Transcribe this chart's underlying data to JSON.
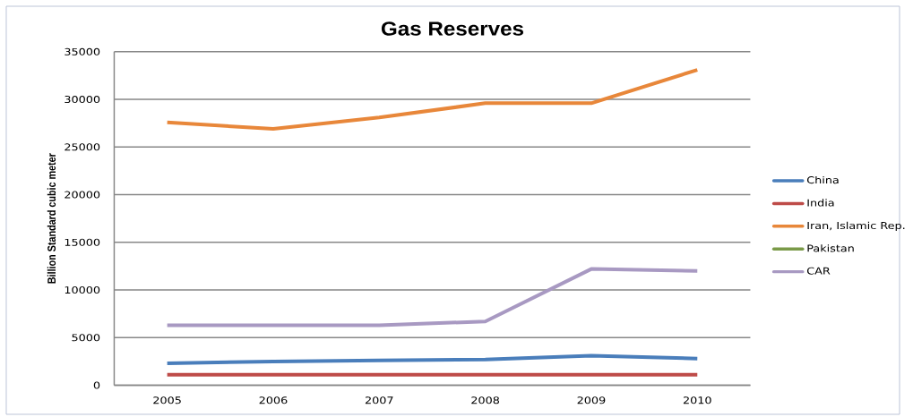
{
  "chart_data": {
    "type": "line",
    "title": "Gas Reserves",
    "ylabel": "Billion Standard cubic meter",
    "categories": [
      "2005",
      "2006",
      "2007",
      "2008",
      "2009",
      "2010"
    ],
    "series": [
      {
        "name": "China",
        "color": "#4a7ebb",
        "values": [
          2300,
          2500,
          2600,
          2700,
          3100,
          2800
        ]
      },
      {
        "name": "India",
        "color": "#be4b48",
        "values": [
          1100,
          1100,
          1100,
          1100,
          1100,
          1100
        ]
      },
      {
        "name": "Iran, Islamic Rep.",
        "color": "#e8873a",
        "values": [
          27600,
          26900,
          28100,
          29600,
          29600,
          33100
        ]
      },
      {
        "name": "Pakistan",
        "color": "#7a9a48",
        "values": [
          null,
          null,
          null,
          null,
          null,
          null
        ]
      },
      {
        "name": "CAR",
        "color": "#a899c2",
        "values": [
          6300,
          6300,
          6300,
          6700,
          12200,
          12000
        ]
      }
    ],
    "ylim": [
      0,
      35000
    ],
    "yticks": [
      0,
      5000,
      10000,
      15000,
      20000,
      25000,
      30000,
      35000
    ],
    "grid": "y",
    "legend": "right"
  }
}
